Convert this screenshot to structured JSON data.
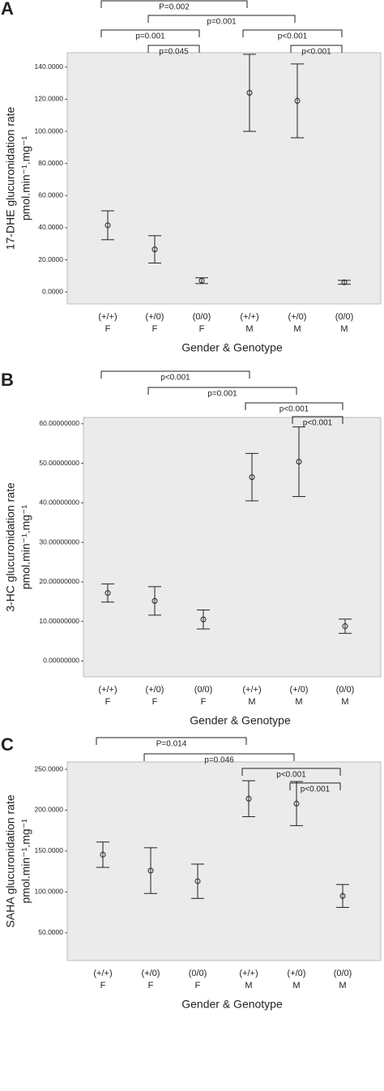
{
  "chart_data": [
    {
      "type": "errorbar",
      "panel": "A",
      "ylabel": [
        "17-DHE glucuronidation rate",
        "pmol.min⁻¹.mg⁻¹"
      ],
      "xlabel": "Gender & Genotype",
      "categories": [
        [
          "(+/+)",
          "F"
        ],
        [
          "(+/0)",
          "F"
        ],
        [
          "(0/0)",
          "F"
        ],
        [
          "(+/+)",
          "M"
        ],
        [
          "(+/0)",
          "M"
        ],
        [
          "(0/0)",
          "M"
        ]
      ],
      "values": [
        41.5,
        26.5,
        7,
        124,
        119,
        6
      ],
      "errors": [
        9,
        8.5,
        1.8,
        24,
        23,
        1.2
      ],
      "ylim": [
        -7.5,
        149
      ],
      "yticks": [
        {
          "value": 0,
          "label": "0.0000"
        },
        {
          "value": 20,
          "label": "20.0000"
        },
        {
          "value": 40,
          "label": "40.0000"
        },
        {
          "value": 60,
          "label": "60.0000"
        },
        {
          "value": 80,
          "label": "80.0000"
        },
        {
          "value": 100,
          "label": "100.0000"
        },
        {
          "value": 120,
          "label": "120.0000"
        },
        {
          "value": 140,
          "label": "140.0000"
        }
      ],
      "annotations": [
        "P=0.002",
        "p=0.001",
        "p=0.001",
        "p<0.001",
        "p=0.045",
        "p<0.001"
      ]
    },
    {
      "type": "errorbar",
      "panel": "B",
      "ylabel": [
        "3-HC glucuronidation rate",
        "pmol.min⁻¹.mg⁻¹"
      ],
      "xlabel": "Gender & Genotype",
      "categories": [
        [
          "(+/+)",
          "F"
        ],
        [
          "(+/0)",
          "F"
        ],
        [
          "(0/0)",
          "F"
        ],
        [
          "(+/+)",
          "M"
        ],
        [
          "(+/0)",
          "M"
        ],
        [
          "(0/0)",
          "M"
        ]
      ],
      "values": [
        17.2,
        15.2,
        10.5,
        46.5,
        50.4,
        8.8
      ],
      "errors": [
        2.3,
        3.6,
        2.4,
        6,
        8.8,
        1.8
      ],
      "ylim": [
        -4,
        61.6
      ],
      "yticks": [
        {
          "value": 0,
          "label": "0.00000000"
        },
        {
          "value": 10,
          "label": "10.00000000"
        },
        {
          "value": 20,
          "label": "20.00000000"
        },
        {
          "value": 30,
          "label": "30.00000000"
        },
        {
          "value": 40,
          "label": "40.00000000"
        },
        {
          "value": 50,
          "label": "50.00000000"
        },
        {
          "value": 60,
          "label": "60.00000000"
        }
      ],
      "annotations": [
        "p<0.001",
        "p=0.001",
        "p<0.001",
        "p<0.001"
      ]
    },
    {
      "type": "errorbar",
      "panel": "C",
      "ylabel": [
        "SAHA glucuronidation rate",
        "pmol.min⁻¹.mg⁻¹"
      ],
      "xlabel": "Gender & Genotype",
      "categories": [
        [
          "(+/+)",
          "F"
        ],
        [
          "(+/0)",
          "F"
        ],
        [
          "(0/0)",
          "F"
        ],
        [
          "(+/+)",
          "M"
        ],
        [
          "(+/0)",
          "M"
        ],
        [
          "(0/0)",
          "M"
        ]
      ],
      "values": [
        145.5,
        126,
        113,
        214,
        208,
        95
      ],
      "errors": [
        15.5,
        28,
        21,
        22,
        27,
        14
      ],
      "ylim": [
        16,
        259
      ],
      "yticks": [
        {
          "value": 50,
          "label": "50.0000"
        },
        {
          "value": 100,
          "label": "100.0000"
        },
        {
          "value": 150,
          "label": "150.0000"
        },
        {
          "value": 200,
          "label": "200.0000"
        },
        {
          "value": 250,
          "label": "250.0000"
        }
      ],
      "annotations": [
        "P=0.014",
        "p=0.046",
        "p<0.001",
        "p<0.001"
      ]
    }
  ]
}
